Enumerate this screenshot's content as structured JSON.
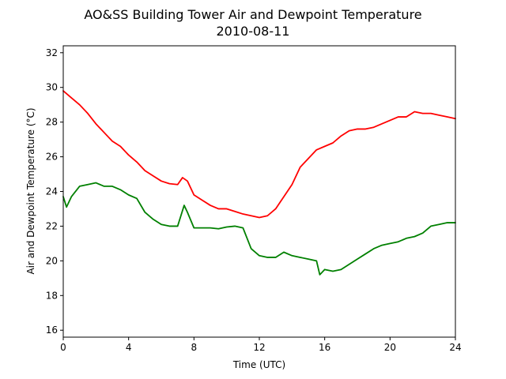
{
  "chart_data": {
    "type": "line",
    "title": "AO&SS Building Tower Air and Dewpoint Temperature",
    "subtitle": "2010-08-11",
    "xlabel": "Time (UTC)",
    "ylabel": "Air and Dewpoint Temperature (°C)",
    "xlim": [
      0,
      24
    ],
    "ylim": [
      15.6,
      32.4
    ],
    "xticks": [
      0,
      4,
      8,
      12,
      16,
      20,
      24
    ],
    "yticks": [
      16,
      18,
      20,
      22,
      24,
      26,
      28,
      30,
      32
    ],
    "grid": false,
    "legend": "none",
    "series": [
      {
        "color": "#ff0000",
        "x": [
          0,
          0.5,
          1,
          1.5,
          2,
          2.5,
          3,
          3.5,
          4,
          4.5,
          5,
          5.5,
          6,
          6.5,
          7,
          7.3,
          7.6,
          8,
          8.5,
          9,
          9.5,
          10,
          10.5,
          11,
          11.5,
          12,
          12.5,
          13,
          13.5,
          14,
          14.5,
          15,
          15.5,
          16,
          16.5,
          17,
          17.5,
          18,
          18.5,
          19,
          19.5,
          20,
          20.5,
          21,
          21.5,
          22,
          22.5,
          23,
          23.5,
          24
        ],
        "y": [
          29.8,
          29.4,
          29.0,
          28.5,
          27.9,
          27.4,
          26.9,
          26.6,
          26.1,
          25.7,
          25.2,
          24.9,
          24.6,
          24.45,
          24.4,
          24.8,
          24.6,
          23.8,
          23.5,
          23.2,
          23.0,
          23.0,
          22.85,
          22.7,
          22.6,
          22.5,
          22.6,
          23.0,
          23.7,
          24.4,
          25.4,
          25.9,
          26.4,
          26.6,
          26.8,
          27.2,
          27.5,
          27.6,
          27.6,
          27.7,
          27.9,
          28.1,
          28.3,
          28.3,
          28.6,
          28.5,
          28.5,
          28.4,
          28.3,
          28.2
        ]
      },
      {
        "color": "#008000",
        "x": [
          0,
          0.2,
          0.5,
          1,
          1.5,
          2,
          2.5,
          3,
          3.5,
          4,
          4.5,
          5,
          5.5,
          6,
          6.5,
          7,
          7.2,
          7.4,
          7.6,
          8,
          8.5,
          9,
          9.5,
          10,
          10.5,
          11,
          11.5,
          12,
          12.5,
          13,
          13.5,
          14,
          14.5,
          15,
          15.5,
          15.7,
          16,
          16.5,
          17,
          17.5,
          18,
          18.5,
          19,
          19.5,
          20,
          20.5,
          21,
          21.5,
          22,
          22.5,
          23,
          23.5,
          24
        ],
        "y": [
          23.7,
          23.1,
          23.7,
          24.3,
          24.4,
          24.5,
          24.3,
          24.3,
          24.1,
          23.8,
          23.6,
          22.8,
          22.4,
          22.1,
          22.0,
          22.0,
          22.6,
          23.2,
          22.8,
          21.9,
          21.9,
          21.9,
          21.85,
          21.95,
          22.0,
          21.9,
          20.7,
          20.3,
          20.2,
          20.2,
          20.5,
          20.3,
          20.2,
          20.1,
          20.0,
          19.2,
          19.5,
          19.4,
          19.5,
          19.8,
          20.1,
          20.4,
          20.7,
          20.9,
          21.0,
          21.1,
          21.3,
          21.4,
          21.6,
          22.0,
          22.1,
          22.2,
          22.2
        ]
      }
    ]
  }
}
